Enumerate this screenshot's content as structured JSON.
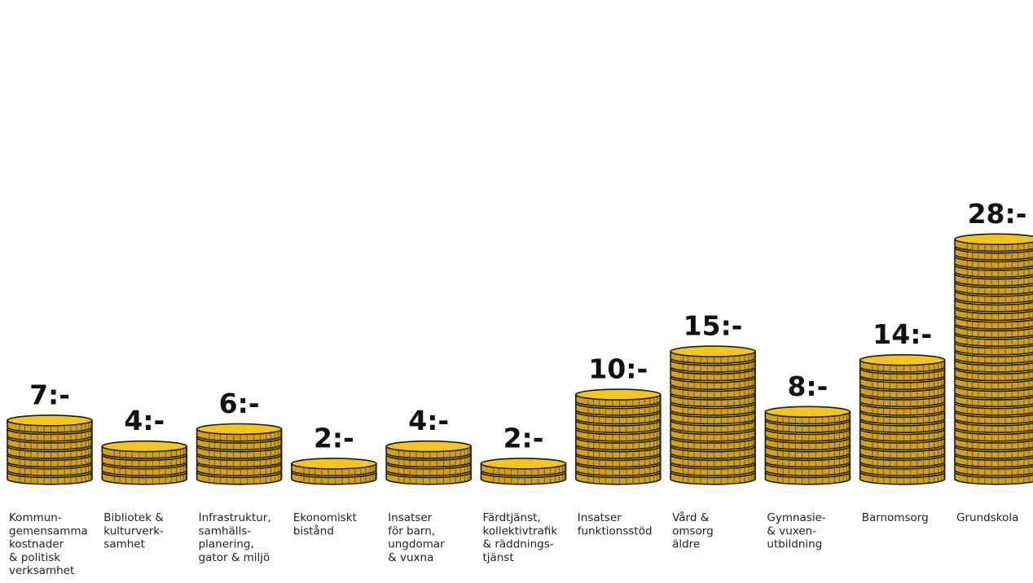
{
  "chart_data": {
    "type": "bar",
    "style": "coin-stacks",
    "categories": [
      "Kommun-\ngemensamma\nkostnader\n& politisk\nverksamhet",
      "Bibliotek &\nkulturverk-\nsamhet",
      "Infrastruktur,\nsamhälls-\nplanering,\ngator & miljö",
      "Ekonomiskt\nbistånd",
      "Insatser\nför barn,\nungdomar\n& vuxna",
      "Färdtjänst,\nkollektivtrafik\n& räddnings-\ntjänst",
      "Insatser\nfunktionsstöd",
      "Vård &\nomsorg\näldre",
      "Gymnasie-\n& vuxen-\nutbildning",
      "Barnomsorg",
      "Grundskola"
    ],
    "values": [
      7,
      4,
      6,
      2,
      4,
      2,
      10,
      15,
      8,
      14,
      28
    ],
    "value_labels": [
      "7:-",
      "4:-",
      "6:-",
      "2:-",
      "4:-",
      "2:-",
      "10:-",
      "15:-",
      "8:-",
      "14:-",
      "28:-"
    ],
    "colors": {
      "coin_face": "#F5C518",
      "coin_side": "#D4A017",
      "outline": "#1a1a1a"
    },
    "grid": false,
    "legend": "none"
  }
}
